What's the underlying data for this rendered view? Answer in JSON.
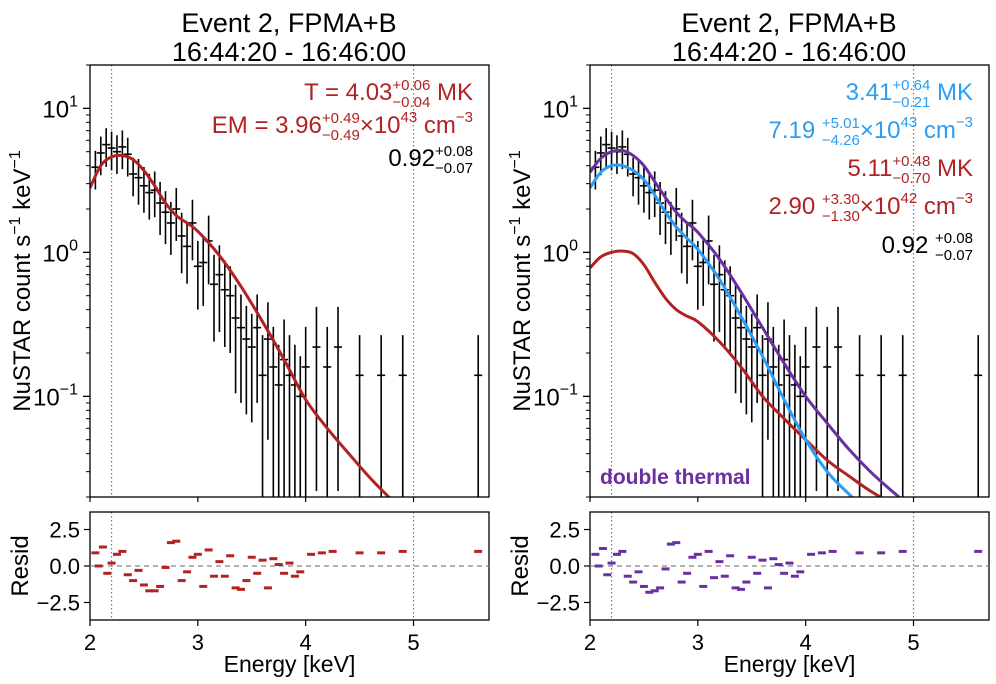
{
  "chart_data": [
    {
      "type": "scatter",
      "title": "Event 2, FPMA+B",
      "subtitle": "16:44:20 - 16:46:00",
      "xlabel": "Energy [keV]",
      "ylabel": "NuSTAR count s$^{-1}$ keV$^{-1}$",
      "ylabel_text": "NuSTAR count s",
      "ylabel_sup1": "−1",
      "ylabel_mid": " keV",
      "ylabel_sup2": "−1",
      "xlim": [
        2.0,
        5.7
      ],
      "ylim_log": [
        0.02,
        20
      ],
      "x_ticks": [
        2,
        3,
        4,
        5
      ],
      "y_ticks": [
        {
          "value": 0.1,
          "base": "10",
          "exp": "−1"
        },
        {
          "value": 1,
          "base": "10",
          "exp": "0"
        },
        {
          "value": 10,
          "base": "10",
          "exp": "1"
        }
      ],
      "vlines": [
        2.2,
        5.0
      ],
      "annotations": [
        {
          "prefix": "T = ",
          "value": "4.03",
          "sup": "+0.06",
          "sub": "−0.04",
          "suffix": " MK",
          "color": "#b22222"
        },
        {
          "prefix": "EM = ",
          "value": "3.96",
          "sup": "+0.49",
          "sub": "−0.49",
          "suffix": "×10",
          "exp": "43",
          "unit": " cm",
          "unit_exp": "−3",
          "color": "#b22222"
        },
        {
          "prefix": "",
          "value": "0.92",
          "sup": "+0.08",
          "sub": "−0.07",
          "suffix": "",
          "color": "#000000"
        }
      ],
      "data": {
        "x": [
          2.05,
          2.1,
          2.15,
          2.2,
          2.25,
          2.3,
          2.35,
          2.4,
          2.45,
          2.5,
          2.55,
          2.6,
          2.65,
          2.7,
          2.75,
          2.8,
          2.85,
          2.9,
          2.95,
          3.0,
          3.05,
          3.1,
          3.15,
          3.2,
          3.25,
          3.3,
          3.35,
          3.4,
          3.45,
          3.5,
          3.55,
          3.6,
          3.65,
          3.7,
          3.75,
          3.8,
          3.85,
          3.9,
          3.95,
          4.0,
          4.1,
          4.2,
          4.3,
          4.5,
          4.7,
          4.9,
          5.6
        ],
        "y": [
          3.9,
          4.9,
          5.6,
          5.3,
          5.0,
          5.4,
          4.8,
          3.5,
          3.3,
          2.9,
          2.6,
          2.7,
          2.2,
          1.9,
          1.6,
          2.0,
          1.3,
          1.1,
          1.6,
          0.8,
          0.85,
          1.2,
          0.6,
          0.7,
          0.55,
          0.5,
          0.35,
          0.3,
          0.25,
          0.22,
          0.3,
          0.14,
          0.25,
          0.16,
          0.12,
          0.18,
          0.14,
          0.12,
          0.1,
          0.16,
          0.22,
          0.16,
          0.22,
          0.14,
          0.14,
          0.14,
          0.14
        ],
        "err": [
          0.3,
          0.3,
          0.3,
          0.3,
          0.3,
          0.3,
          0.3,
          0.3,
          0.35,
          0.35,
          0.35,
          0.35,
          0.4,
          0.4,
          0.4,
          0.4,
          0.45,
          0.45,
          0.45,
          0.5,
          0.5,
          0.5,
          0.6,
          0.6,
          0.6,
          0.6,
          0.7,
          0.7,
          0.7,
          0.7,
          0.7,
          0.9,
          0.8,
          0.9,
          0.9,
          0.9,
          0.9,
          0.9,
          0.9,
          0.9,
          0.9,
          0.9,
          0.9,
          0.9,
          0.9,
          0.9,
          0.9
        ]
      },
      "models": [
        {
          "name": "thermal",
          "color": "#b22222",
          "x": [
            2.0,
            2.1,
            2.2,
            2.3,
            2.4,
            2.5,
            2.6,
            2.7,
            2.8,
            2.9,
            3.0,
            3.2,
            3.4,
            3.6,
            3.8,
            4.0,
            4.2,
            4.4,
            4.6,
            4.8
          ],
          "y": [
            2.8,
            4.0,
            4.6,
            4.7,
            4.4,
            3.7,
            2.9,
            2.2,
            1.8,
            1.6,
            1.4,
            0.95,
            0.58,
            0.33,
            0.18,
            0.095,
            0.06,
            0.04,
            0.027,
            0.019
          ]
        }
      ],
      "resid": {
        "color": "#b22222",
        "ylim": [
          -3.7,
          3.7
        ],
        "y_ticks": [
          "2.5",
          "0.0",
          "−2.5"
        ],
        "x": [
          2.05,
          2.08,
          2.12,
          2.16,
          2.2,
          2.25,
          2.3,
          2.35,
          2.4,
          2.45,
          2.5,
          2.55,
          2.6,
          2.65,
          2.7,
          2.75,
          2.8,
          2.85,
          2.9,
          2.95,
          3.0,
          3.05,
          3.1,
          3.15,
          3.2,
          3.25,
          3.3,
          3.35,
          3.4,
          3.45,
          3.5,
          3.55,
          3.6,
          3.65,
          3.7,
          3.75,
          3.8,
          3.85,
          3.9,
          3.95,
          4.05,
          4.15,
          4.25,
          4.5,
          4.7,
          4.9,
          5.6
        ],
        "y": [
          0.9,
          0.0,
          1.3,
          -0.5,
          0.2,
          0.8,
          1.0,
          -0.6,
          -1.0,
          -0.3,
          -1.3,
          -1.7,
          -1.7,
          -1.4,
          -0.1,
          1.6,
          1.7,
          -1.0,
          -0.4,
          0.6,
          0.8,
          -1.4,
          1.1,
          -0.7,
          0.3,
          -0.7,
          0.7,
          -1.5,
          -1.6,
          -1.0,
          0.6,
          -0.5,
          0.4,
          -1.5,
          0.5,
          0.1,
          -0.5,
          0.2,
          -0.7,
          -0.4,
          0.8,
          0.9,
          1.0,
          0.9,
          0.9,
          1.0,
          1.0
        ]
      }
    },
    {
      "type": "scatter",
      "title": "Event 2, FPMA+B",
      "subtitle": "16:44:20 - 16:46:00",
      "xlabel": "Energy [keV]",
      "ylabel_text": "NuSTAR count s",
      "ylabel_sup1": "−1",
      "ylabel_mid": " keV",
      "ylabel_sup2": "−1",
      "xlim": [
        2.0,
        5.7
      ],
      "ylim_log": [
        0.02,
        20
      ],
      "x_ticks": [
        2,
        3,
        4,
        5
      ],
      "y_ticks": [
        {
          "value": 0.1,
          "base": "10",
          "exp": "−1"
        },
        {
          "value": 1,
          "base": "10",
          "exp": "0"
        },
        {
          "value": 10,
          "base": "10",
          "exp": "1"
        }
      ],
      "vlines": [
        2.2,
        5.0
      ],
      "legend_label": "double thermal",
      "legend_color": "#6a2fa0",
      "annotations": [
        {
          "prefix": "",
          "value": "3.41",
          "sup": "+0.64",
          "sub": "−0.21",
          "suffix": " MK",
          "color": "#2a9df4"
        },
        {
          "prefix": "",
          "value": "7.19 ",
          "sup": "+5.01",
          "sub": "−4.26",
          "suffix": "×10",
          "exp": "43",
          "unit": " cm",
          "unit_exp": "−3",
          "color": "#2a9df4"
        },
        {
          "prefix": "",
          "value": "5.11",
          "sup": "+0.48",
          "sub": "−0.70",
          "suffix": " MK",
          "color": "#b22222"
        },
        {
          "prefix": "",
          "value": "2.90 ",
          "sup": "+3.30",
          "sub": "−1.30",
          "suffix": "×10",
          "exp": "42",
          "unit": " cm",
          "unit_exp": "−3",
          "color": "#b22222"
        },
        {
          "prefix": "",
          "value": "0.92 ",
          "sup": "+0.08",
          "sub": "−0.07",
          "suffix": "",
          "color": "#000000"
        }
      ],
      "data": {
        "x": [
          2.05,
          2.1,
          2.15,
          2.2,
          2.25,
          2.3,
          2.35,
          2.4,
          2.45,
          2.5,
          2.55,
          2.6,
          2.65,
          2.7,
          2.75,
          2.8,
          2.85,
          2.9,
          2.95,
          3.0,
          3.05,
          3.1,
          3.15,
          3.2,
          3.25,
          3.3,
          3.35,
          3.4,
          3.45,
          3.5,
          3.55,
          3.6,
          3.65,
          3.7,
          3.75,
          3.8,
          3.85,
          3.9,
          3.95,
          4.0,
          4.1,
          4.2,
          4.3,
          4.5,
          4.7,
          4.9,
          5.6
        ],
        "y": [
          3.9,
          4.9,
          5.6,
          5.3,
          5.0,
          5.4,
          4.8,
          3.5,
          3.3,
          2.9,
          2.6,
          2.7,
          2.2,
          1.9,
          1.6,
          2.0,
          1.3,
          1.1,
          1.6,
          0.8,
          0.85,
          1.2,
          0.6,
          0.7,
          0.55,
          0.5,
          0.35,
          0.3,
          0.25,
          0.22,
          0.3,
          0.14,
          0.25,
          0.16,
          0.12,
          0.18,
          0.14,
          0.12,
          0.1,
          0.16,
          0.22,
          0.16,
          0.22,
          0.14,
          0.14,
          0.14,
          0.14
        ],
        "err": [
          0.3,
          0.3,
          0.3,
          0.3,
          0.3,
          0.3,
          0.3,
          0.3,
          0.35,
          0.35,
          0.35,
          0.35,
          0.4,
          0.4,
          0.4,
          0.4,
          0.45,
          0.45,
          0.45,
          0.5,
          0.5,
          0.5,
          0.6,
          0.6,
          0.6,
          0.6,
          0.7,
          0.7,
          0.7,
          0.7,
          0.7,
          0.9,
          0.8,
          0.9,
          0.9,
          0.9,
          0.9,
          0.9,
          0.9,
          0.9,
          0.9,
          0.9,
          0.9,
          0.9,
          0.9,
          0.9,
          0.9
        ]
      },
      "models": [
        {
          "name": "hot",
          "color": "#b22222",
          "x": [
            2.0,
            2.1,
            2.2,
            2.3,
            2.4,
            2.5,
            2.6,
            2.7,
            2.8,
            2.9,
            3.0,
            3.2,
            3.4,
            3.6,
            3.8,
            4.0,
            4.2,
            4.4,
            4.6,
            4.8
          ],
          "y": [
            0.78,
            0.93,
            1.0,
            1.02,
            0.98,
            0.82,
            0.62,
            0.48,
            0.4,
            0.36,
            0.33,
            0.24,
            0.16,
            0.1,
            0.07,
            0.05,
            0.036,
            0.028,
            0.022,
            0.018
          ]
        },
        {
          "name": "cool",
          "color": "#2a9df4",
          "x": [
            2.0,
            2.1,
            2.2,
            2.3,
            2.4,
            2.5,
            2.6,
            2.7,
            2.8,
            2.9,
            3.0,
            3.2,
            3.4,
            3.6,
            3.8,
            4.0,
            4.2,
            4.4,
            4.5
          ],
          "y": [
            2.8,
            3.6,
            4.0,
            4.0,
            3.7,
            3.2,
            2.5,
            1.9,
            1.5,
            1.25,
            1.05,
            0.65,
            0.36,
            0.19,
            0.095,
            0.05,
            0.03,
            0.021,
            0.018
          ]
        },
        {
          "name": "total",
          "color": "#6a2fa0",
          "x": [
            2.0,
            2.1,
            2.2,
            2.3,
            2.4,
            2.5,
            2.6,
            2.7,
            2.8,
            2.9,
            3.0,
            3.2,
            3.4,
            3.6,
            3.8,
            4.0,
            4.2,
            4.4,
            4.6,
            4.8,
            4.9
          ],
          "y": [
            3.6,
            4.5,
            5.0,
            5.1,
            4.7,
            4.0,
            3.1,
            2.4,
            1.9,
            1.6,
            1.38,
            0.9,
            0.53,
            0.3,
            0.17,
            0.1,
            0.065,
            0.043,
            0.03,
            0.022,
            0.019
          ]
        }
      ],
      "resid": {
        "color": "#6a2fa0",
        "ylim": [
          -3.7,
          3.7
        ],
        "y_ticks": [
          "2.5",
          "0.0",
          "−2.5"
        ],
        "x": [
          2.05,
          2.08,
          2.12,
          2.16,
          2.2,
          2.25,
          2.3,
          2.35,
          2.4,
          2.45,
          2.5,
          2.55,
          2.6,
          2.65,
          2.7,
          2.75,
          2.8,
          2.85,
          2.9,
          2.95,
          3.0,
          3.05,
          3.1,
          3.15,
          3.2,
          3.25,
          3.3,
          3.35,
          3.4,
          3.45,
          3.5,
          3.55,
          3.6,
          3.65,
          3.7,
          3.75,
          3.8,
          3.85,
          3.9,
          3.95,
          4.05,
          4.15,
          4.25,
          4.5,
          4.7,
          4.9,
          5.6
        ],
        "y": [
          0.8,
          0.0,
          1.2,
          -0.6,
          0.2,
          0.8,
          1.0,
          -0.7,
          -1.1,
          -0.4,
          -1.4,
          -1.8,
          -1.7,
          -1.5,
          -0.2,
          1.5,
          1.6,
          -1.1,
          -0.5,
          0.6,
          0.8,
          -1.4,
          1.0,
          -0.8,
          0.3,
          -0.7,
          0.7,
          -1.5,
          -1.6,
          -1.1,
          0.6,
          -0.5,
          0.4,
          -1.5,
          0.5,
          0.1,
          -0.5,
          0.2,
          -0.7,
          -0.4,
          0.8,
          0.9,
          1.0,
          0.9,
          0.9,
          1.0,
          1.0
        ]
      }
    }
  ]
}
